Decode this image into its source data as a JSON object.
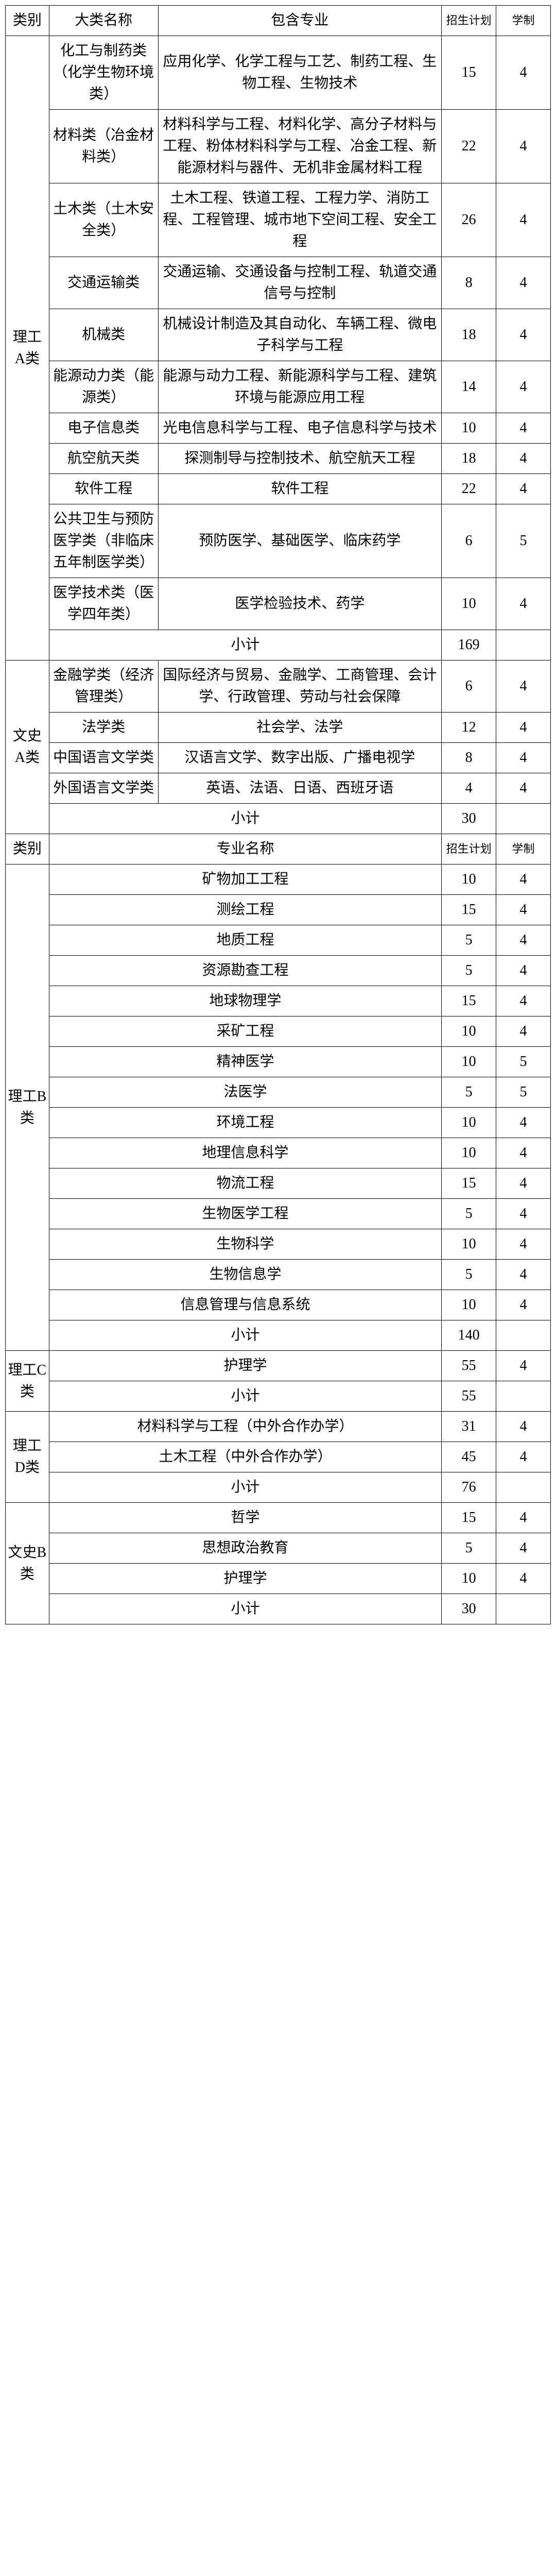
{
  "headers": {
    "category": "类别",
    "majorGroup": "大类名称",
    "included": "包含专业",
    "majorName": "专业名称",
    "plan": "招生计划",
    "years": "学制",
    "subtotal": "小计"
  },
  "section1": {
    "catA": {
      "label": "理工A类",
      "rows": [
        {
          "major": "化工与制药类（化学生物环境类）",
          "detail": "应用化学、化学工程与工艺、制药工程、生物工程、生物技术",
          "plan": "15",
          "years": "4"
        },
        {
          "major": "材料类（冶金材料类）",
          "detail": "材料科学与工程、材料化学、高分子材料与工程、粉体材料科学与工程、冶金工程、新能源材料与器件、无机非金属材料工程",
          "plan": "22",
          "years": "4"
        },
        {
          "major": "土木类（土木安全类）",
          "detail": "土木工程、铁道工程、工程力学、消防工程、工程管理、城市地下空间工程、安全工程",
          "plan": "26",
          "years": "4"
        },
        {
          "major": "交通运输类",
          "detail": "交通运输、交通设备与控制工程、轨道交通信号与控制",
          "plan": "8",
          "years": "4"
        },
        {
          "major": "机械类",
          "detail": "机械设计制造及其自动化、车辆工程、微电子科学与工程",
          "plan": "18",
          "years": "4"
        },
        {
          "major": "能源动力类（能源类）",
          "detail": "能源与动力工程、新能源科学与工程、建筑环境与能源应用工程",
          "plan": "14",
          "years": "4"
        },
        {
          "major": "电子信息类",
          "detail": "光电信息科学与工程、电子信息科学与技术",
          "plan": "10",
          "years": "4"
        },
        {
          "major": "航空航天类",
          "detail": "探测制导与控制技术、航空航天工程",
          "plan": "18",
          "years": "4"
        },
        {
          "major": "软件工程",
          "detail": "软件工程",
          "plan": "22",
          "years": "4"
        },
        {
          "major": "公共卫生与预防医学类（非临床五年制医学类）",
          "detail": "预防医学、基础医学、临床药学",
          "plan": "6",
          "years": "5"
        },
        {
          "major": "医学技术类（医学四年类）",
          "detail": "医学检验技术、药学",
          "plan": "10",
          "years": "4"
        }
      ],
      "subtotal": "169"
    },
    "catB": {
      "label": "文史A类",
      "rows": [
        {
          "major": "金融学类（经济管理类）",
          "detail": "国际经济与贸易、金融学、工商管理、会计学、行政管理、劳动与社会保障",
          "plan": "6",
          "years": "4"
        },
        {
          "major": "法学类",
          "detail": "社会学、法学",
          "plan": "12",
          "years": "4"
        },
        {
          "major": "中国语言文学类",
          "detail": "汉语言文学、数字出版、广播电视学",
          "plan": "8",
          "years": "4"
        },
        {
          "major": "外国语言文学类",
          "detail": "英语、法语、日语、西班牙语",
          "plan": "4",
          "years": "4"
        }
      ],
      "subtotal": "30"
    }
  },
  "section2": {
    "catC": {
      "label": "理工B类",
      "rows": [
        {
          "name": "矿物加工工程",
          "plan": "10",
          "years": "4"
        },
        {
          "name": "测绘工程",
          "plan": "15",
          "years": "4"
        },
        {
          "name": "地质工程",
          "plan": "5",
          "years": "4"
        },
        {
          "name": "资源勘查工程",
          "plan": "5",
          "years": "4"
        },
        {
          "name": "地球物理学",
          "plan": "15",
          "years": "4"
        },
        {
          "name": "采矿工程",
          "plan": "10",
          "years": "4"
        },
        {
          "name": "精神医学",
          "plan": "10",
          "years": "5"
        },
        {
          "name": "法医学",
          "plan": "5",
          "years": "5"
        },
        {
          "name": "环境工程",
          "plan": "10",
          "years": "4"
        },
        {
          "name": "地理信息科学",
          "plan": "10",
          "years": "4"
        },
        {
          "name": "物流工程",
          "plan": "15",
          "years": "4"
        },
        {
          "name": "生物医学工程",
          "plan": "5",
          "years": "4"
        },
        {
          "name": "生物科学",
          "plan": "10",
          "years": "4"
        },
        {
          "name": "生物信息学",
          "plan": "5",
          "years": "4"
        },
        {
          "name": "信息管理与信息系统",
          "plan": "10",
          "years": "4"
        }
      ],
      "subtotal": "140"
    },
    "catD": {
      "label": "理工C类",
      "rows": [
        {
          "name": "护理学",
          "plan": "55",
          "years": "4"
        }
      ],
      "subtotal": "55"
    },
    "catE": {
      "label": "理工D类",
      "rows": [
        {
          "name": "材料科学与工程（中外合作办学）",
          "plan": "31",
          "years": "4"
        },
        {
          "name": "土木工程（中外合作办学）",
          "plan": "45",
          "years": "4"
        }
      ],
      "subtotal": "76"
    },
    "catF": {
      "label": "文史B类",
      "rows": [
        {
          "name": "哲学",
          "plan": "15",
          "years": "4"
        },
        {
          "name": "思想政治教育",
          "plan": "5",
          "years": "4"
        },
        {
          "name": "护理学",
          "plan": "10",
          "years": "4"
        }
      ],
      "subtotal": "30"
    }
  }
}
